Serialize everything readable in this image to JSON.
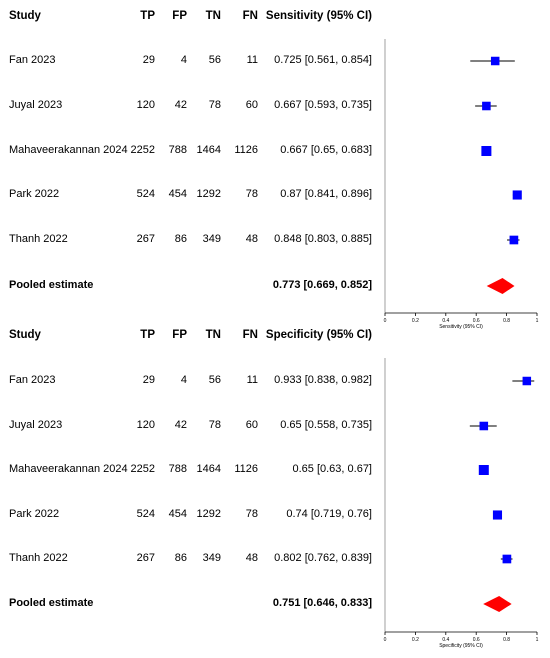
{
  "columns": {
    "study": "Study",
    "tp": "TP",
    "fp": "FP",
    "tn": "TN",
    "fn": "FN"
  },
  "chart_data": [
    {
      "type": "forest",
      "stat_header": "Sensitivity (95% CI)",
      "xlabel": "Sensitivity (95% CI)",
      "xlim": [
        0,
        1
      ],
      "ticks": [
        "0",
        "0.2",
        "0.4",
        "0.6",
        "0.8",
        "1"
      ],
      "studies": [
        {
          "study": "Fan 2023",
          "tp": "29",
          "fp": "4",
          "tn": "56",
          "fn": "11",
          "ci_text": "0.725 [0.561, 0.854]",
          "est": 0.725,
          "lo": 0.561,
          "hi": 0.854
        },
        {
          "study": "Juyal 2023",
          "tp": "120",
          "fp": "42",
          "tn": "78",
          "fn": "60",
          "ci_text": "0.667 [0.593, 0.735]",
          "est": 0.667,
          "lo": 0.593,
          "hi": 0.735
        },
        {
          "study": "Mahaveerakannan 2024",
          "tp": "2252",
          "fp": "788",
          "tn": "1464",
          "fn": "1126",
          "ci_text": "0.667 [0.65, 0.683]",
          "est": 0.667,
          "lo": 0.65,
          "hi": 0.683
        },
        {
          "study": "Park 2022",
          "tp": "524",
          "fp": "454",
          "tn": "1292",
          "fn": "78",
          "ci_text": "0.87 [0.841, 0.896]",
          "est": 0.87,
          "lo": 0.841,
          "hi": 0.896
        },
        {
          "study": "Thanh 2022",
          "tp": "267",
          "fp": "86",
          "tn": "349",
          "fn": "48",
          "ci_text": "0.848 [0.803, 0.885]",
          "est": 0.848,
          "lo": 0.803,
          "hi": 0.885
        }
      ],
      "pooled": {
        "label": "Pooled estimate",
        "ci_text": "0.773 [0.669, 0.852]",
        "est": 0.773,
        "lo": 0.669,
        "hi": 0.852
      },
      "marker_color": "#0000ff",
      "pooled_color": "#ff0000"
    },
    {
      "type": "forest",
      "stat_header": "Specificity (95% CI)",
      "xlabel": "Specificity (95% CI)",
      "xlim": [
        0,
        1
      ],
      "ticks": [
        "0",
        "0.2",
        "0.4",
        "0.6",
        "0.8",
        "1"
      ],
      "studies": [
        {
          "study": "Fan 2023",
          "tp": "29",
          "fp": "4",
          "tn": "56",
          "fn": "11",
          "ci_text": "0.933 [0.838, 0.982]",
          "est": 0.933,
          "lo": 0.838,
          "hi": 0.982
        },
        {
          "study": "Juyal 2023",
          "tp": "120",
          "fp": "42",
          "tn": "78",
          "fn": "60",
          "ci_text": "0.65 [0.558, 0.735]",
          "est": 0.65,
          "lo": 0.558,
          "hi": 0.735
        },
        {
          "study": "Mahaveerakannan 2024",
          "tp": "2252",
          "fp": "788",
          "tn": "1464",
          "fn": "1126",
          "ci_text": "0.65 [0.63, 0.67]",
          "est": 0.65,
          "lo": 0.63,
          "hi": 0.67
        },
        {
          "study": "Park 2022",
          "tp": "524",
          "fp": "454",
          "tn": "1292",
          "fn": "78",
          "ci_text": "0.74 [0.719, 0.76]",
          "est": 0.74,
          "lo": 0.719,
          "hi": 0.76
        },
        {
          "study": "Thanh 2022",
          "tp": "267",
          "fp": "86",
          "tn": "349",
          "fn": "48",
          "ci_text": "0.802 [0.762, 0.839]",
          "est": 0.802,
          "lo": 0.762,
          "hi": 0.839
        }
      ],
      "pooled": {
        "label": "Pooled estimate",
        "ci_text": "0.751 [0.646, 0.833]",
        "est": 0.751,
        "lo": 0.646,
        "hi": 0.833
      },
      "marker_color": "#0000ff",
      "pooled_color": "#ff0000"
    }
  ]
}
